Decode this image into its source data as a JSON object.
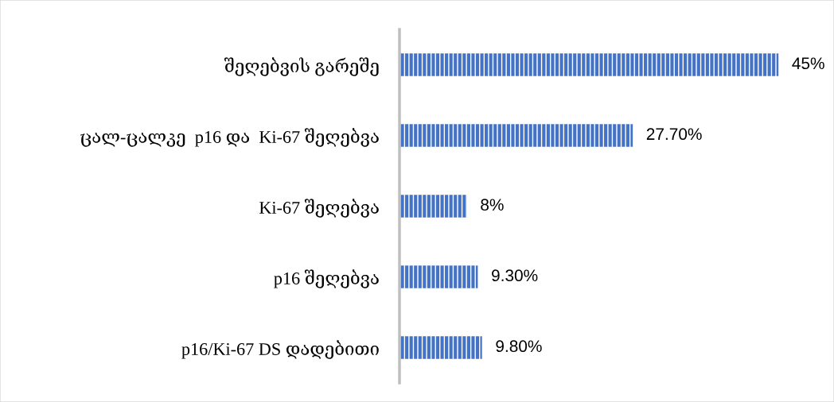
{
  "chart_data": {
    "type": "bar",
    "orientation": "horizontal",
    "categories": [
      "შეღებვის გარეშე",
      "ცალ-ცალკე  p16 და  Ki-67 შეღებვა",
      "Ki-67 შეღებვა",
      "p16 შეღებვა",
      "p16/Ki-67 DS დადებითი"
    ],
    "values": [
      45,
      27.7,
      8,
      9.3,
      9.8
    ],
    "color": "#4472c4",
    "value_labels": [
      "45%",
      "27.70%",
      "8%",
      "9.30%",
      "9.80%"
    ],
    "tick_labels": "y"
  }
}
